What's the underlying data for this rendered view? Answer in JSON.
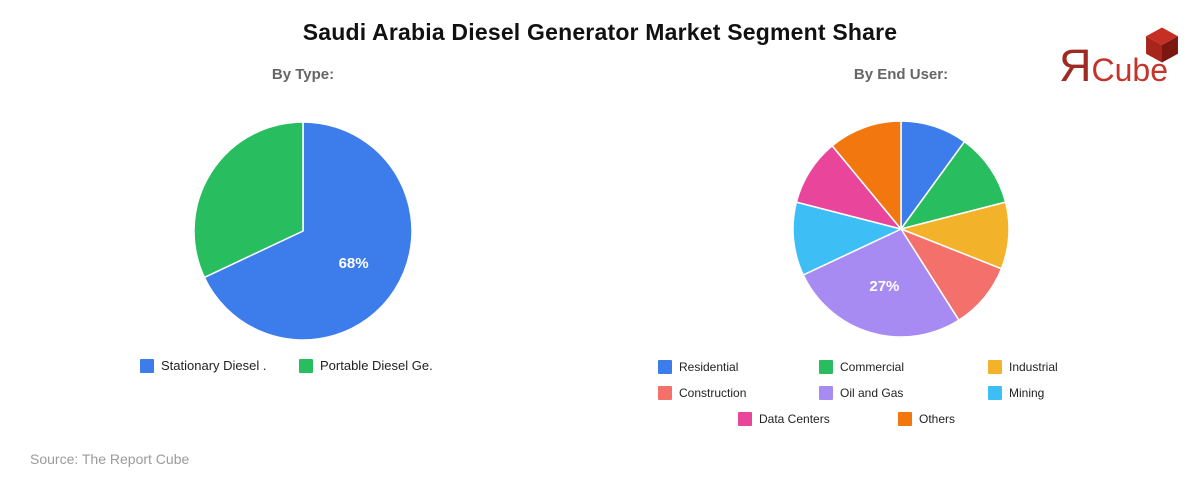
{
  "title": "Saudi Arabia Diesel Generator Market Segment Share",
  "source_note": "Source: The Report Cube",
  "logo": {
    "mark": "Я",
    "name": "Cube",
    "mark_color": "#9e2b23",
    "name_color": "#c5342a",
    "cube_top": "#c62f24",
    "cube_left": "#a8251b",
    "cube_right": "#7c1710"
  },
  "chart_data": [
    {
      "type": "pie",
      "title": "By Type:",
      "labels": [
        "Stationary Diesel .",
        "Portable Diesel Ge."
      ],
      "values": [
        68,
        32
      ],
      "colors": [
        "#3d7ceb",
        "#28be60"
      ],
      "data_labels": [
        "68%",
        null
      ],
      "legend_position": "bottom",
      "start_angle_deg": 0,
      "direction": "clockwise"
    },
    {
      "type": "pie",
      "title": "By End User:",
      "labels": [
        "Residential",
        "Commercial",
        "Industrial",
        "Construction",
        "Oil and Gas",
        "Mining",
        "Data Centers",
        "Others"
      ],
      "values": [
        10,
        11,
        10,
        10,
        27,
        11,
        10,
        11
      ],
      "colors": [
        "#3d7ceb",
        "#28be60",
        "#f2b32a",
        "#f4716b",
        "#a78bf3",
        "#3dbef5",
        "#e8459b",
        "#f1770e"
      ],
      "data_labels": [
        null,
        null,
        null,
        null,
        "27%",
        null,
        null,
        null
      ],
      "legend_position": "bottom",
      "start_angle_deg": 0,
      "direction": "clockwise"
    }
  ]
}
